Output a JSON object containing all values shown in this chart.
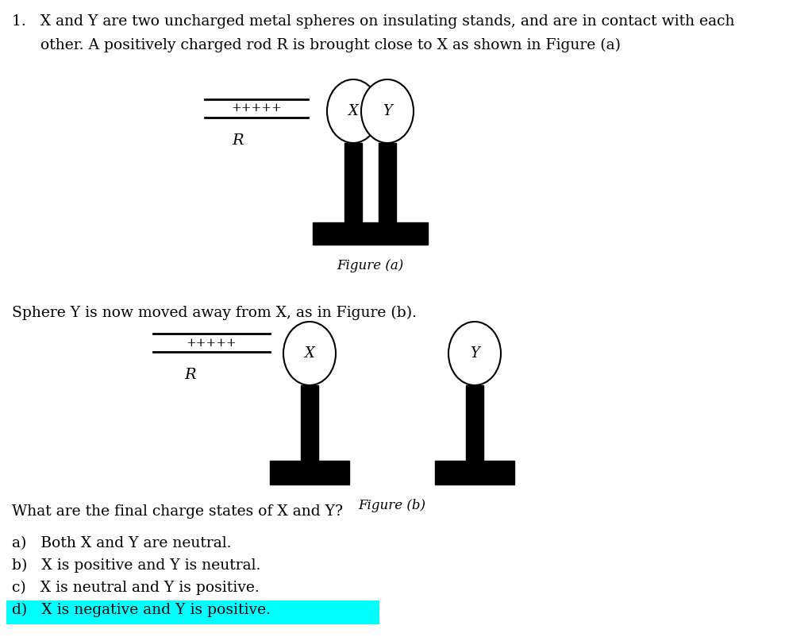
{
  "line1": "1.   X and Y are two uncharged metal spheres on insulating stands, and are in contact with each",
  "line2": "      other. A positively charged rod R is brought close to X as shown in Figure (a)",
  "sphere_y_moved_text": "Sphere Y is now moved away from X, as in Figure (b).",
  "question_text": "What are the final charge states of X and Y?",
  "options": [
    "a)   Both X and Y are neutral.",
    "b)   X is positive and Y is neutral.",
    "c)   X is neutral and Y is positive.",
    "d)   X is negative and Y is positive."
  ],
  "fig_a_caption": "Figure (a)",
  "fig_b_caption": "Figure (b)",
  "highlight_color": "#00FFFF",
  "background_color": "#f0f0f0",
  "text_color": "#000000",
  "rod_plus": "+++++",
  "rod_label": "R"
}
